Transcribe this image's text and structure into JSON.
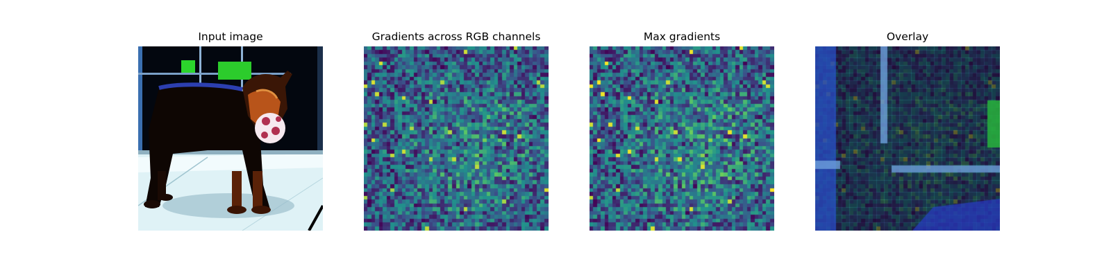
{
  "figure": {
    "panels": [
      {
        "title": "Input image"
      },
      {
        "title": "Gradients across RGB channels"
      },
      {
        "title": "Max gradients"
      },
      {
        "title": "Overlay"
      }
    ]
  },
  "colors": {
    "viridis_dark": "#440154",
    "viridis_mid": "#21918c",
    "viridis_light": "#fde725",
    "bg": "#ffffff"
  }
}
